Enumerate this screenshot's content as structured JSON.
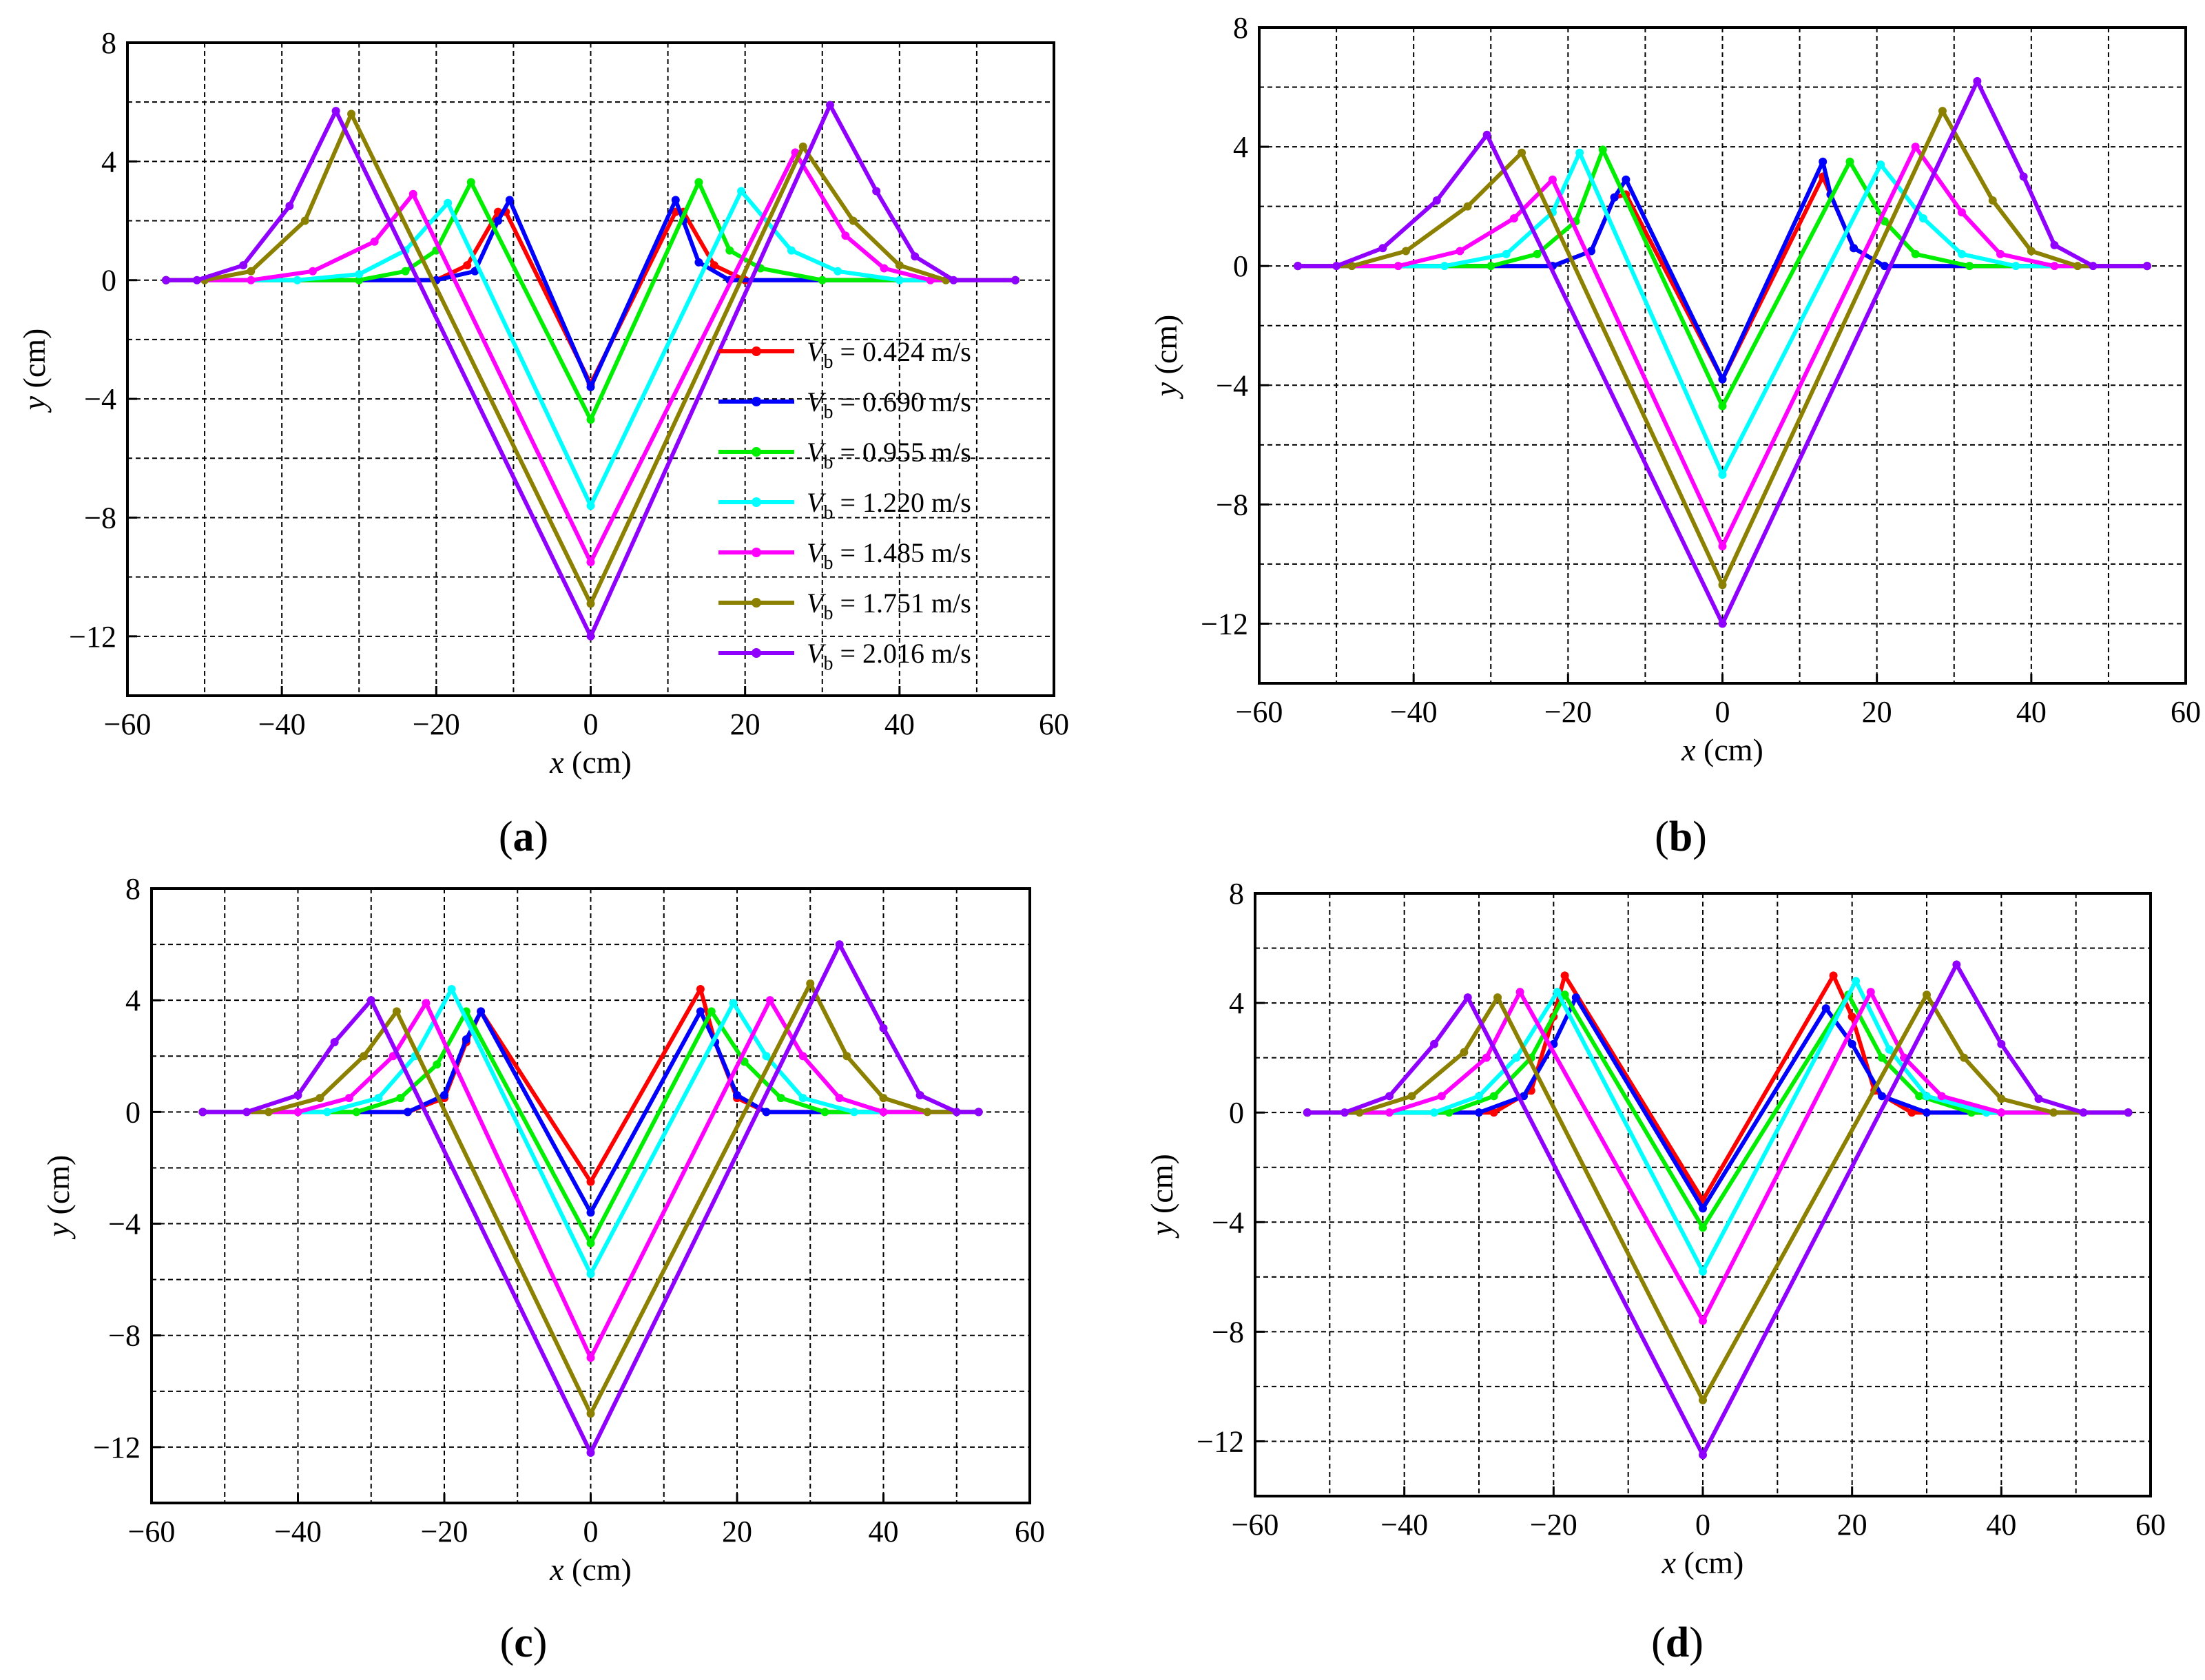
{
  "figure": {
    "panels": [
      {
        "id": "a",
        "label_open": "(",
        "label_letter": "a",
        "label_close": ")"
      },
      {
        "id": "b",
        "label_open": "(",
        "label_letter": "b",
        "label_close": ")"
      },
      {
        "id": "c",
        "label_open": "(",
        "label_letter": "c",
        "label_close": ")"
      },
      {
        "id": "d",
        "label_open": "(",
        "label_letter": "d",
        "label_close": ")"
      }
    ],
    "legend": {
      "symbol": "V",
      "subscript": "b",
      "entries": [
        {
          "value": " = 0.424 m/s",
          "color": "#ff0000"
        },
        {
          "value": " = 0.690 m/s",
          "color": "#0000ff"
        },
        {
          "value": " = 0.955 m/s",
          "color": "#00ee00"
        },
        {
          "value": " = 1.220 m/s",
          "color": "#00ffff"
        },
        {
          "value": " = 1.485 m/s",
          "color": "#ff00ff"
        },
        {
          "value": " = 1.751 m/s",
          "color": "#8b8000"
        },
        {
          "value": " = 2.016 m/s",
          "color": "#8f00ff"
        }
      ]
    }
  },
  "chart_data": [
    {
      "id": "a",
      "type": "line",
      "xlabel_var": "x",
      "xlabel_unit": " (cm)",
      "ylabel_var": "y",
      "ylabel_unit": " (cm)",
      "xlim": [
        -60,
        60
      ],
      "ylim": [
        -14,
        8
      ],
      "xticks": [
        -60,
        -40,
        -20,
        0,
        20,
        40,
        60
      ],
      "yticks": [
        -12,
        -8,
        -4,
        0,
        4,
        8
      ],
      "xtick_labels": [
        "−60",
        "−40",
        "−20",
        "0",
        "20",
        "40",
        "60"
      ],
      "ytick_labels": [
        "−12",
        "−8",
        "−4",
        "0",
        "4",
        "8"
      ],
      "grid": true,
      "legend": "center-right",
      "series": [
        {
          "name": "Vb = 0.424 m/s",
          "color": "#ff0000",
          "x": [
            -55,
            -20,
            -16,
            -12,
            -11,
            0,
            11,
            12,
            16,
            20,
            55
          ],
          "y": [
            0,
            0,
            0.5,
            2.3,
            2.3,
            -3.5,
            2.3,
            2.3,
            0.5,
            0,
            0
          ]
        },
        {
          "name": "Vb = 0.690 m/s",
          "color": "#0000ff",
          "x": [
            -55,
            -20,
            -15,
            -12,
            -10.5,
            0,
            11,
            12,
            14,
            18,
            55
          ],
          "y": [
            0,
            0,
            0.3,
            2,
            2.7,
            -3.6,
            2.7,
            2,
            0.6,
            0,
            0
          ]
        },
        {
          "name": "Vb = 0.955 m/s",
          "color": "#00ee00",
          "x": [
            -55,
            -30,
            -24,
            -20,
            -15.5,
            0,
            14,
            18,
            22,
            30,
            55
          ],
          "y": [
            0,
            0,
            0.3,
            1,
            3.3,
            -4.7,
            3.3,
            1,
            0.4,
            0,
            0
          ]
        },
        {
          "name": "Vb = 1.220 m/s",
          "color": "#00ffff",
          "x": [
            -55,
            -38,
            -30,
            -24,
            -18.5,
            0,
            19.5,
            26,
            32,
            40,
            55
          ],
          "y": [
            0,
            0,
            0.2,
            1,
            2.6,
            -7.6,
            3,
            1,
            0.3,
            0,
            0
          ]
        },
        {
          "name": "Vb = 1.485 m/s",
          "color": "#ff00ff",
          "x": [
            -55,
            -44,
            -36,
            -28,
            -23,
            0,
            26.5,
            33,
            38,
            44,
            55
          ],
          "y": [
            0,
            0,
            0.3,
            1.3,
            2.9,
            -9.5,
            4.3,
            1.5,
            0.4,
            0,
            0
          ]
        },
        {
          "name": "Vb = 1.751 m/s",
          "color": "#8b8000",
          "x": [
            -55,
            -50,
            -44,
            -37,
            -31,
            0,
            27.5,
            34,
            40,
            46,
            55
          ],
          "y": [
            0,
            0,
            0.3,
            2,
            5.6,
            -10.9,
            4.5,
            2,
            0.5,
            0,
            0
          ]
        },
        {
          "name": "Vb = 2.016 m/s",
          "color": "#8f00ff",
          "x": [
            -55,
            -51,
            -45,
            -39,
            -33,
            0,
            31,
            37,
            42,
            47,
            55
          ],
          "y": [
            0,
            0,
            0.5,
            2.5,
            5.7,
            -12,
            5.9,
            3,
            0.8,
            0,
            0
          ]
        }
      ]
    },
    {
      "id": "b",
      "type": "line",
      "xlabel_var": "x",
      "xlabel_unit": " (cm)",
      "ylabel_var": "y",
      "ylabel_unit": " (cm)",
      "xlim": [
        -60,
        60
      ],
      "ylim": [
        -14,
        8
      ],
      "xticks": [
        -60,
        -40,
        -20,
        0,
        20,
        40,
        60
      ],
      "yticks": [
        -12,
        -8,
        -4,
        0,
        4,
        8
      ],
      "xtick_labels": [
        "−60",
        "−40",
        "−20",
        "0",
        "20",
        "40",
        "60"
      ],
      "ytick_labels": [
        "−12",
        "−8",
        "−4",
        "0",
        "4",
        "8"
      ],
      "grid": true,
      "legend": "none",
      "series": [
        {
          "name": "Vb = 0.424 m/s",
          "color": "#ff0000",
          "x": [
            -55,
            -22,
            -17,
            -14,
            -12.5,
            0,
            13,
            14,
            17,
            21,
            55
          ],
          "y": [
            0,
            0,
            0.5,
            2.3,
            2.4,
            -3.8,
            3,
            2.4,
            0.6,
            0,
            0
          ]
        },
        {
          "name": "Vb = 0.690 m/s",
          "color": "#0000ff",
          "x": [
            -55,
            -22,
            -17,
            -14,
            -12.5,
            0,
            13,
            14,
            17,
            21,
            55
          ],
          "y": [
            0,
            0,
            0.5,
            2.3,
            2.9,
            -3.8,
            3.5,
            2.4,
            0.6,
            0,
            0
          ]
        },
        {
          "name": "Vb = 0.955 m/s",
          "color": "#00ee00",
          "x": [
            -55,
            -30,
            -24,
            -19,
            -15.5,
            0,
            16.5,
            21,
            25,
            32,
            55
          ],
          "y": [
            0,
            0,
            0.4,
            1.5,
            3.9,
            -4.7,
            3.5,
            1.5,
            0.4,
            0,
            0
          ]
        },
        {
          "name": "Vb = 1.220 m/s",
          "color": "#00ffff",
          "x": [
            -55,
            -36,
            -28,
            -22,
            -18.5,
            0,
            20.5,
            26,
            31,
            38,
            55
          ],
          "y": [
            0,
            0,
            0.4,
            1.8,
            3.8,
            -7,
            3.4,
            1.6,
            0.4,
            0,
            0
          ]
        },
        {
          "name": "Vb = 1.485 m/s",
          "color": "#ff00ff",
          "x": [
            -55,
            -42,
            -34,
            -27,
            -22,
            0,
            25,
            31,
            36,
            43,
            55
          ],
          "y": [
            0,
            0,
            0.5,
            1.6,
            2.9,
            -9.4,
            4,
            1.8,
            0.4,
            0,
            0
          ]
        },
        {
          "name": "Vb = 1.751 m/s",
          "color": "#8b8000",
          "x": [
            -55,
            -48,
            -41,
            -33,
            -26,
            0,
            28.5,
            35,
            40,
            46,
            55
          ],
          "y": [
            0,
            0,
            0.5,
            2,
            3.8,
            -10.7,
            5.2,
            2.2,
            0.5,
            0,
            0
          ]
        },
        {
          "name": "Vb = 2.016 m/s",
          "color": "#8f00ff",
          "x": [
            -55,
            -50,
            -44,
            -37,
            -30.5,
            0,
            33,
            39,
            43,
            48,
            55
          ],
          "y": [
            0,
            0,
            0.6,
            2.2,
            4.4,
            -12,
            6.2,
            3,
            0.7,
            0,
            0
          ]
        }
      ]
    },
    {
      "id": "c",
      "type": "line",
      "xlabel_var": "x",
      "xlabel_unit": " (cm)",
      "ylabel_var": "y",
      "ylabel_unit": " (cm)",
      "xlim": [
        -60,
        60
      ],
      "ylim": [
        -14,
        8
      ],
      "xticks": [
        -60,
        -40,
        -20,
        0,
        20,
        40,
        60
      ],
      "yticks": [
        -12,
        -8,
        -4,
        0,
        4,
        8
      ],
      "xtick_labels": [
        "−60",
        "−40",
        "−20",
        "0",
        "20",
        "40",
        "60"
      ],
      "ytick_labels": [
        "−12",
        "−8",
        "−4",
        "0",
        "4",
        "8"
      ],
      "grid": true,
      "legend": "none",
      "series": [
        {
          "name": "Vb = 0.424 m/s",
          "color": "#ff0000",
          "x": [
            -53,
            -25,
            -20,
            -17,
            -15,
            0,
            15,
            17,
            20,
            24,
            53
          ],
          "y": [
            0,
            0,
            0.5,
            2.5,
            3.6,
            -2.5,
            4.4,
            2.5,
            0.5,
            0,
            0
          ]
        },
        {
          "name": "Vb = 0.690 m/s",
          "color": "#0000ff",
          "x": [
            -53,
            -25,
            -20,
            -17,
            -15,
            0,
            15,
            17,
            20,
            24,
            53
          ],
          "y": [
            0,
            0,
            0.6,
            2.6,
            3.6,
            -3.6,
            3.6,
            2.5,
            0.6,
            0,
            0
          ]
        },
        {
          "name": "Vb = 0.955 m/s",
          "color": "#00ee00",
          "x": [
            -53,
            -32,
            -26,
            -21,
            -17,
            0,
            16.5,
            21,
            26,
            32,
            53
          ],
          "y": [
            0,
            0,
            0.5,
            1.7,
            3.6,
            -4.7,
            3.6,
            1.8,
            0.5,
            0,
            0
          ]
        },
        {
          "name": "Vb = 1.220 m/s",
          "color": "#00ffff",
          "x": [
            -53,
            -36,
            -29,
            -24,
            -19,
            0,
            19.5,
            24,
            29,
            36,
            53
          ],
          "y": [
            0,
            0,
            0.5,
            2,
            4.4,
            -5.8,
            3.9,
            2,
            0.5,
            0,
            0
          ]
        },
        {
          "name": "Vb = 1.485 m/s",
          "color": "#ff00ff",
          "x": [
            -53,
            -40,
            -33,
            -27,
            -22.5,
            0,
            24.5,
            29,
            34,
            40,
            53
          ],
          "y": [
            0,
            0,
            0.5,
            2,
            3.9,
            -8.8,
            4,
            2,
            0.5,
            0,
            0
          ]
        },
        {
          "name": "Vb = 1.751 m/s",
          "color": "#8b8000",
          "x": [
            -53,
            -44,
            -37,
            -31,
            -26.5,
            0,
            30,
            35,
            40,
            46,
            53
          ],
          "y": [
            0,
            0,
            0.5,
            2,
            3.6,
            -10.8,
            4.6,
            2,
            0.5,
            0,
            0
          ]
        },
        {
          "name": "Vb = 2.016 m/s",
          "color": "#8f00ff",
          "x": [
            -53,
            -47,
            -40,
            -35,
            -30,
            0,
            34,
            40,
            45,
            50,
            53
          ],
          "y": [
            0,
            0,
            0.6,
            2.5,
            4,
            -12.2,
            6,
            3,
            0.6,
            0,
            0
          ]
        }
      ]
    },
    {
      "id": "d",
      "type": "line",
      "xlabel_var": "x",
      "xlabel_unit": " (cm)",
      "ylabel_var": "y",
      "ylabel_unit": " (cm)",
      "xlim": [
        -60,
        60
      ],
      "ylim": [
        -14,
        8
      ],
      "xticks": [
        -60,
        -40,
        -20,
        0,
        20,
        40,
        60
      ],
      "yticks": [
        -12,
        -8,
        -4,
        0,
        4,
        8
      ],
      "xtick_labels": [
        "−60",
        "−40",
        "−20",
        "0",
        "20",
        "40",
        "60"
      ],
      "ytick_labels": [
        "−12",
        "−8",
        "−4",
        "0",
        "4",
        "8"
      ],
      "grid": true,
      "legend": "none",
      "series": [
        {
          "name": "Vb = 0.424 m/s",
          "color": "#ff0000",
          "x": [
            -53,
            -28,
            -23,
            -20,
            -18.5,
            0,
            17.5,
            20,
            23,
            28,
            57
          ],
          "y": [
            0,
            0,
            0.8,
            3.5,
            5,
            -3.2,
            5,
            3.5,
            0.8,
            0,
            0
          ]
        },
        {
          "name": "Vb = 0.690 m/s",
          "color": "#0000ff",
          "x": [
            -53,
            -30,
            -24,
            -20,
            -17,
            0,
            16.5,
            20,
            24,
            30,
            57
          ],
          "y": [
            0,
            0,
            0.6,
            2.5,
            4.2,
            -3.5,
            3.8,
            2.5,
            0.6,
            0,
            0
          ]
        },
        {
          "name": "Vb = 0.955 m/s",
          "color": "#00ee00",
          "x": [
            -53,
            -34,
            -28,
            -23,
            -18.5,
            0,
            19.5,
            24,
            29,
            36,
            57
          ],
          "y": [
            0,
            0,
            0.6,
            2,
            4.3,
            -4.2,
            4.3,
            2,
            0.6,
            0,
            0
          ]
        },
        {
          "name": "Vb = 1.220 m/s",
          "color": "#00ffff",
          "x": [
            -53,
            -36,
            -30,
            -25,
            -19.5,
            0,
            20.5,
            25,
            30,
            38,
            57
          ],
          "y": [
            0,
            0,
            0.6,
            2,
            4.4,
            -5.8,
            4.8,
            2.3,
            0.6,
            0,
            0
          ]
        },
        {
          "name": "Vb = 1.485 m/s",
          "color": "#ff00ff",
          "x": [
            -53,
            -42,
            -35,
            -29,
            -24.5,
            0,
            22.5,
            27,
            32,
            40,
            57
          ],
          "y": [
            0,
            0,
            0.6,
            2,
            4.4,
            -7.6,
            4.4,
            2,
            0.6,
            0,
            0
          ]
        },
        {
          "name": "Vb = 1.751 m/s",
          "color": "#8b8000",
          "x": [
            -53,
            -46,
            -39,
            -32,
            -27.5,
            0,
            30,
            35,
            40,
            47,
            57
          ],
          "y": [
            0,
            0,
            0.6,
            2.2,
            4.2,
            -10.5,
            4.3,
            2,
            0.5,
            0,
            0
          ]
        },
        {
          "name": "Vb = 2.016 m/s",
          "color": "#8f00ff",
          "x": [
            -53,
            -48,
            -42,
            -36,
            -31.5,
            0,
            34,
            40,
            45,
            51,
            57
          ],
          "y": [
            0,
            0,
            0.6,
            2.5,
            4.2,
            -12.5,
            5.4,
            2.5,
            0.5,
            0,
            0
          ]
        }
      ]
    }
  ]
}
